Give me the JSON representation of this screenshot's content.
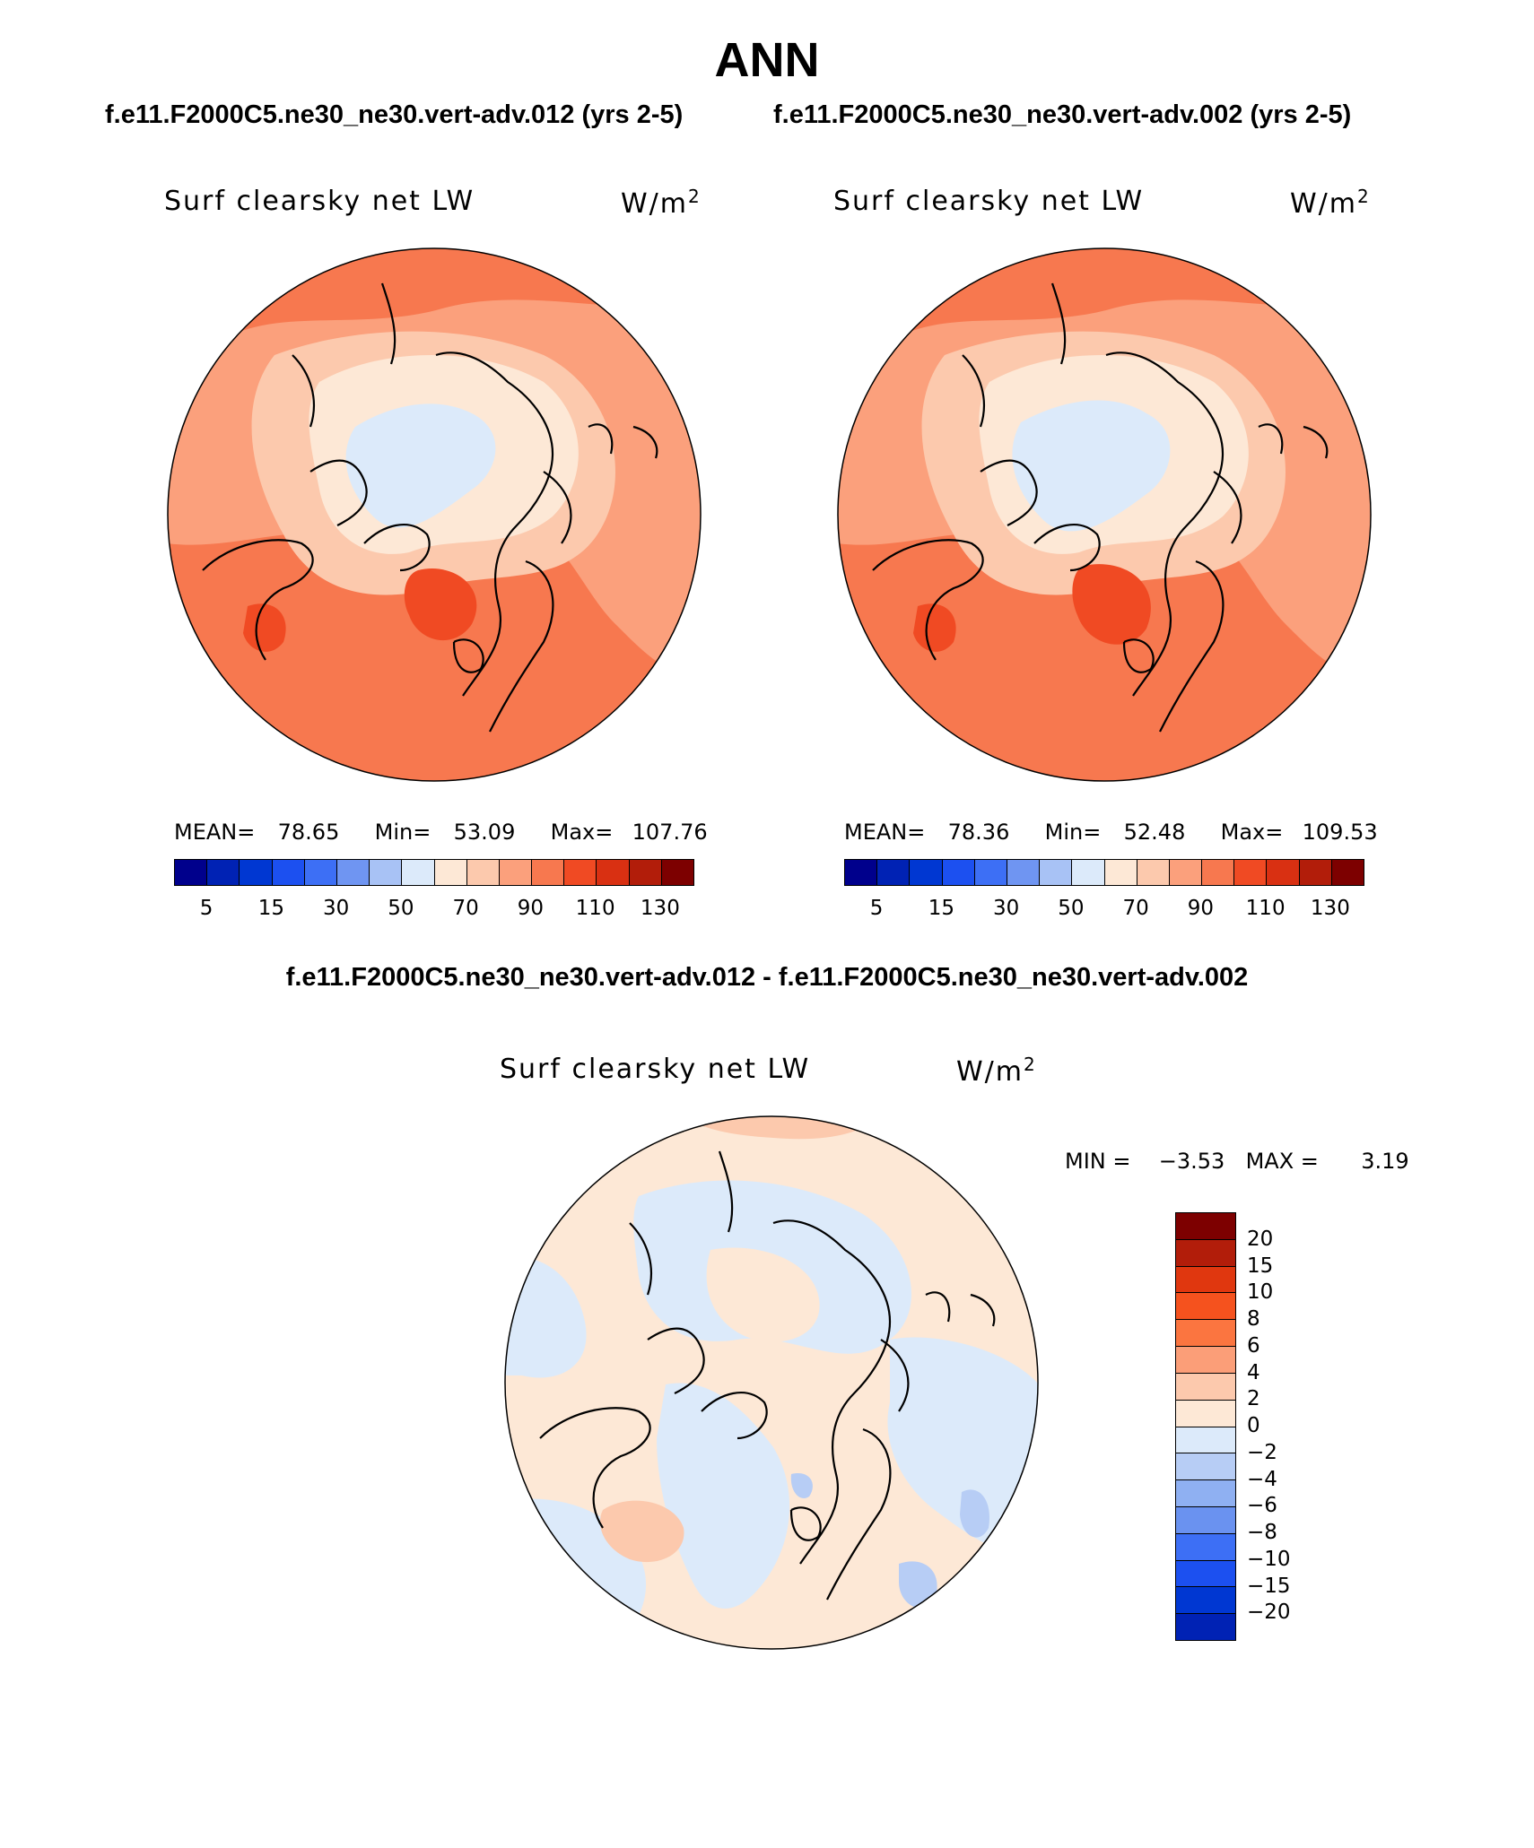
{
  "title": "ANN",
  "case_left": "f.e11.F2000C5.ne30_ne30.vert-adv.012 (yrs 2-5)",
  "case_right": "f.e11.F2000C5.ne30_ne30.vert-adv.002 (yrs 2-5)",
  "diff_title": "f.e11.F2000C5.ne30_ne30.vert-adv.012 - f.e11.F2000C5.ne30_ne30.vert-adv.002",
  "panels": [
    {
      "variable": "Surf clearsky net LW",
      "units": "W/m",
      "units_sup": "2",
      "mean_label": "MEAN=",
      "mean": "78.65",
      "min_label": "Min=",
      "min": "53.09",
      "max_label": "Max=",
      "max": "107.76"
    },
    {
      "variable": "Surf clearsky net LW",
      "units": "W/m",
      "units_sup": "2",
      "mean_label": "MEAN=",
      "mean": "78.36",
      "min_label": "Min=",
      "min": "52.48",
      "max_label": "Max=",
      "max": "109.53"
    }
  ],
  "diff_panel": {
    "variable": "Surf clearsky net LW",
    "units": "W/m",
    "units_sup": "2",
    "min_label": "MIN =",
    "min": "−3.53",
    "max_label": "MAX =",
    "max": "3.19"
  },
  "colorbar_abs": {
    "colors": [
      "#00008c",
      "#0022b4",
      "#0037d2",
      "#1c50f0",
      "#3d6ff5",
      "#6f95f2",
      "#a8c2f5",
      "#dceafa",
      "#fde8d6",
      "#fcc9ad",
      "#fba07c",
      "#f7784f",
      "#f04a23",
      "#d93012",
      "#b21d0a",
      "#7d0000"
    ],
    "tick_labels": [
      "5",
      "15",
      "30",
      "50",
      "70",
      "90",
      "110",
      "130"
    ]
  },
  "colorbar_diff": {
    "colors": [
      "#7d0000",
      "#b21d0a",
      "#e0370f",
      "#f5521e",
      "#fb7540",
      "#fb9e78",
      "#fcc9ad",
      "#fde8d6",
      "#dceafa",
      "#b7cdf5",
      "#8fb0f2",
      "#6a92f0",
      "#3d6ff5",
      "#1c50f0",
      "#0037d2",
      "#0022b4"
    ],
    "tick_labels": [
      "20",
      "15",
      "10",
      "8",
      "6",
      "4",
      "2",
      "0",
      "−2",
      "−4",
      "−6",
      "−8",
      "−10",
      "−15",
      "−20"
    ]
  },
  "map_colors": {
    "land_outline": "#000000",
    "c60": "#fde8d6",
    "c70": "#fcc9ad",
    "c80": "#fba07c",
    "c90": "#f7784f",
    "c100": "#f04a23",
    "c50": "#dceafa",
    "d_pos": "#fde8d6",
    "d_neg": "#dceafa",
    "d_pos2": "#fcc9ad",
    "d_neg2": "#b7cdf5"
  }
}
